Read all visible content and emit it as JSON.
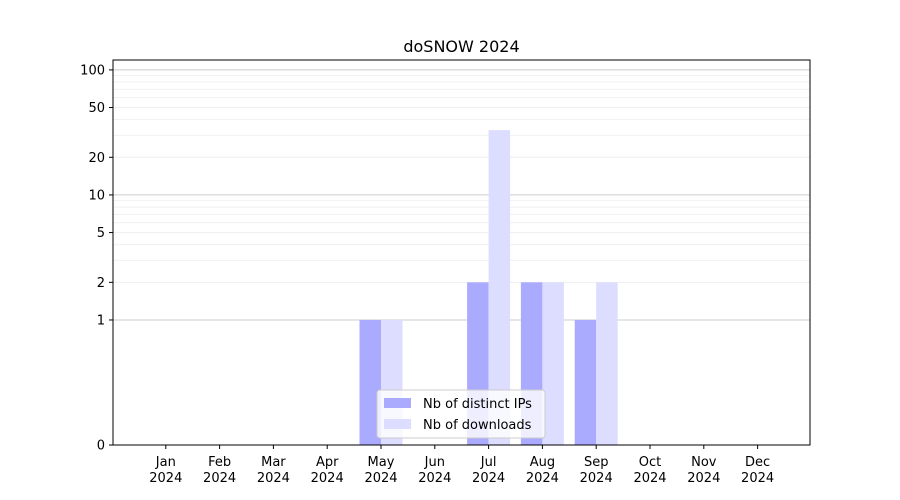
{
  "chart_data": {
    "type": "bar",
    "title": "doSNOW 2024",
    "xlabel": "",
    "ylabel": "",
    "y_scale": "symlog",
    "ylim": [
      0,
      120
    ],
    "y_ticks": [
      0,
      1,
      2,
      5,
      10,
      20,
      50,
      100
    ],
    "grid": true,
    "legend_position": "bottom-center",
    "categories": [
      [
        "Jan",
        "2024"
      ],
      [
        "Feb",
        "2024"
      ],
      [
        "Mar",
        "2024"
      ],
      [
        "Apr",
        "2024"
      ],
      [
        "May",
        "2024"
      ],
      [
        "Jun",
        "2024"
      ],
      [
        "Jul",
        "2024"
      ],
      [
        "Aug",
        "2024"
      ],
      [
        "Sep",
        "2024"
      ],
      [
        "Oct",
        "2024"
      ],
      [
        "Nov",
        "2024"
      ],
      [
        "Dec",
        "2024"
      ]
    ],
    "series": [
      {
        "name": "Nb of distinct IPs",
        "color": "#aaaaff",
        "values": [
          0,
          0,
          0,
          0,
          1,
          0,
          2,
          2,
          1,
          0,
          0,
          0
        ]
      },
      {
        "name": "Nb of downloads",
        "color": "#ddddff",
        "values": [
          0,
          0,
          0,
          0,
          1,
          0,
          33,
          2,
          2,
          0,
          0,
          0
        ]
      }
    ]
  }
}
